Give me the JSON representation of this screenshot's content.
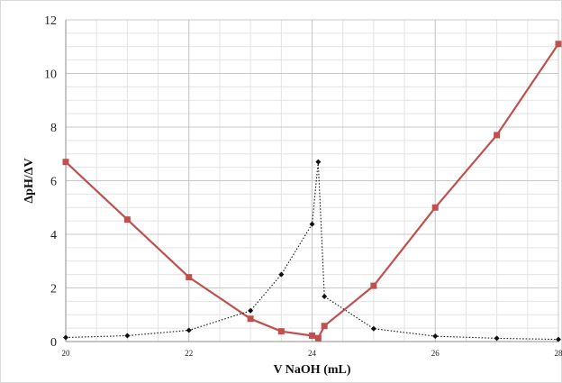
{
  "chart_data": {
    "type": "line",
    "title": "",
    "xlabel": "V NaOH (mL)",
    "ylabel": "ΔpH/ΔV",
    "xlim": [
      20,
      28
    ],
    "ylim": [
      0,
      12
    ],
    "x_ticks": [
      20,
      22,
      24,
      26,
      28
    ],
    "y_ticks": [
      0,
      2,
      4,
      6,
      8,
      10,
      12
    ],
    "x_minor_step": 0.5,
    "y_minor_step": 0.5,
    "grid": true,
    "legend": "none",
    "series": [
      {
        "color": "#c0504d",
        "line_style": "solid",
        "marker": "square",
        "points": [
          [
            20,
            6.7
          ],
          [
            21,
            4.55
          ],
          [
            22,
            2.4
          ],
          [
            23,
            0.85
          ],
          [
            23.5,
            0.38
          ],
          [
            24,
            0.22
          ],
          [
            24.1,
            0.13
          ],
          [
            24.2,
            0.58
          ],
          [
            25,
            2.08
          ],
          [
            26,
            5.0
          ],
          [
            27,
            7.7
          ],
          [
            28,
            11.1
          ]
        ]
      },
      {
        "color": "#111111",
        "line_style": "dotted",
        "marker": "diamond",
        "points": [
          [
            20,
            0.15
          ],
          [
            21,
            0.22
          ],
          [
            22,
            0.42
          ],
          [
            23,
            1.15
          ],
          [
            23.5,
            2.5
          ],
          [
            24,
            4.38
          ],
          [
            24.1,
            6.7
          ],
          [
            24.2,
            1.68
          ],
          [
            25,
            0.48
          ],
          [
            26,
            0.2
          ],
          [
            27,
            0.12
          ],
          [
            28,
            0.08
          ]
        ]
      }
    ]
  }
}
